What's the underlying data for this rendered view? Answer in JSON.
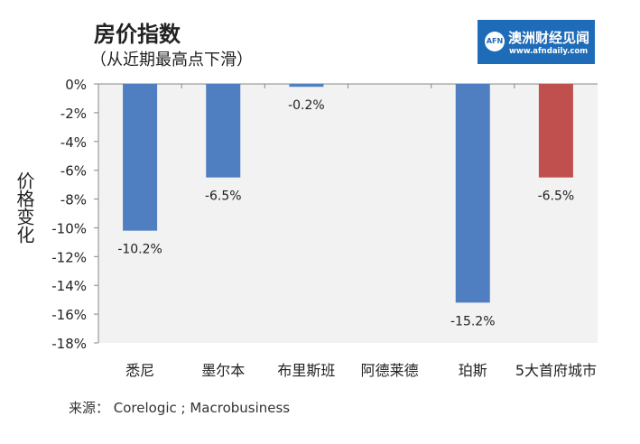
{
  "title": "房价指数",
  "subtitle": "（从近期最高点下滑）",
  "logo": {
    "name_cn": "澳洲财经见闻",
    "url": "www.afndaily.com",
    "mark": "AFN",
    "color": "#1e6bb8"
  },
  "source": "来源： Corelogic ; Macrobusiness",
  "chart_data": {
    "type": "bar",
    "title": "房价指数",
    "ylabel": "价格变化",
    "xlabel": "",
    "ylim": [
      -18,
      0
    ],
    "yticks": [
      "0%",
      "-2%",
      "-4%",
      "-6%",
      "-8%",
      "-10%",
      "-12%",
      "-14%",
      "-16%",
      "-18%"
    ],
    "categories": [
      "悉尼",
      "墨尔本",
      "布里斯班",
      "阿德莱德",
      "珀斯",
      "5大首府城市"
    ],
    "values": [
      -10.2,
      -6.5,
      -0.2,
      0,
      -15.2,
      -6.5
    ],
    "data_labels": [
      "-10.2%",
      "-6.5%",
      "-0.2%",
      "",
      "-15.2%",
      "-6.5%"
    ],
    "colors": [
      "#4f7fc0",
      "#4f7fc0",
      "#4f7fc0",
      "#4f7fc0",
      "#4f7fc0",
      "#c0504d"
    ],
    "grid": false
  }
}
